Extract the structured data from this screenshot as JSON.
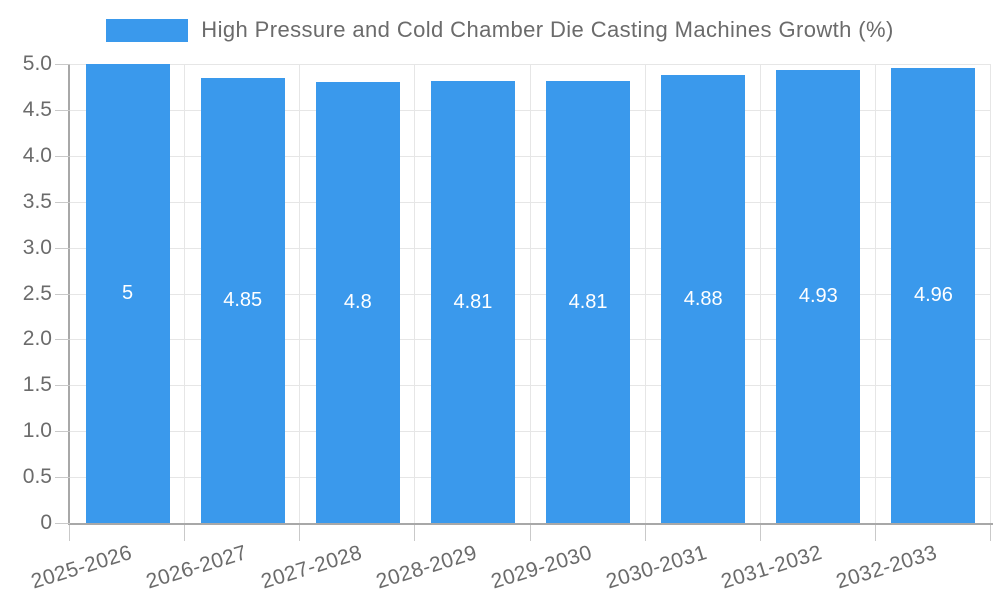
{
  "chart_data": {
    "type": "bar",
    "title": "",
    "legend_position": "top",
    "categories": [
      "2025-2026",
      "2026-2027",
      "2027-2028",
      "2028-2029",
      "2029-2030",
      "2030-2031",
      "2031-2032",
      "2032-2033"
    ],
    "series": [
      {
        "name": "High Pressure and Cold Chamber Die Casting Machines Growth (%)",
        "values": [
          5,
          4.85,
          4.8,
          4.81,
          4.81,
          4.88,
          4.93,
          4.96
        ]
      }
    ],
    "value_labels": [
      "5",
      "4.85",
      "4.8",
      "4.81",
      "4.81",
      "4.88",
      "4.93",
      "4.96"
    ],
    "xlabel": "",
    "ylabel": "",
    "ylim": [
      0,
      5
    ],
    "ytick_step": 0.5,
    "ytick_labels": [
      "0",
      "0.5",
      "1.0",
      "1.5",
      "2.0",
      "2.5",
      "3.0",
      "3.5",
      "4.0",
      "4.5",
      "5.0"
    ],
    "grid": true
  },
  "colors": {
    "bar": "#3a99ec",
    "grid": "#e6e6e6",
    "axis": "#a8a8a8",
    "tick": "#c9c9c9",
    "text": "#6b6b6b",
    "bar_label": "#ffffff",
    "background": "#ffffff"
  }
}
